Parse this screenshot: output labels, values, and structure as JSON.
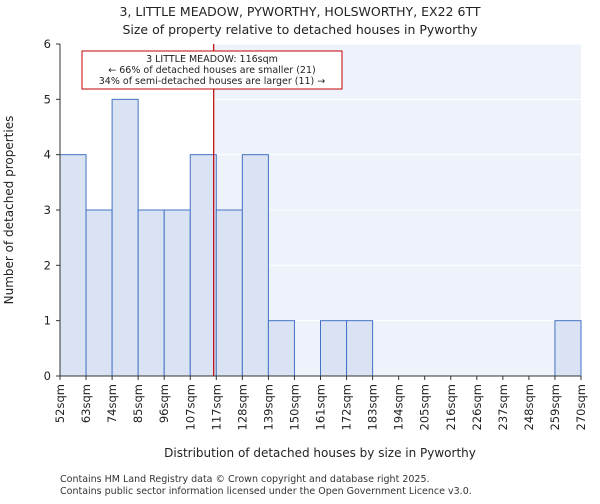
{
  "chart_data": {
    "type": "bar",
    "title_line1": "3, LITTLE MEADOW, PYWORTHY, HOLSWORTHY, EX22 6TT",
    "title_line2": "Size of property relative to detached houses in Pyworthy",
    "xlabel": "Distribution of detached houses by size in Pyworthy",
    "ylabel": "Number of detached properties",
    "bin_edges": [
      52,
      63,
      74,
      85,
      96,
      107,
      117,
      128,
      139,
      150,
      161,
      172,
      183,
      194,
      205,
      216,
      226,
      237,
      248,
      259,
      270
    ],
    "tick_labels": [
      "52sqm",
      "63sqm",
      "74sqm",
      "85sqm",
      "96sqm",
      "107sqm",
      "117sqm",
      "128sqm",
      "139sqm",
      "150sqm",
      "161sqm",
      "172sqm",
      "183sqm",
      "194sqm",
      "205sqm",
      "216sqm",
      "226sqm",
      "237sqm",
      "248sqm",
      "259sqm",
      "270sqm"
    ],
    "values": [
      4,
      3,
      5,
      3,
      3,
      4,
      3,
      4,
      1,
      0,
      1,
      1,
      0,
      0,
      0,
      0,
      0,
      0,
      0,
      1
    ],
    "ylim": [
      0,
      6
    ],
    "yticks": [
      0,
      1,
      2,
      3,
      4,
      5,
      6
    ],
    "property_size": 116,
    "annotation": {
      "line1": "3 LITTLE MEADOW: 116sqm",
      "line2": "← 66% of detached houses are smaller (21)",
      "line3": "34% of semi-detached houses are larger (11) →"
    },
    "colors": {
      "bar_fill": "#dae3f3",
      "bar_edge": "#4472c4",
      "marker_line": "#c00000",
      "shade": "#eef2fb",
      "annotation_border": "#c00000"
    }
  },
  "footer": {
    "line1": "Contains HM Land Registry data © Crown copyright and database right 2025.",
    "line2": "Contains public sector information licensed under the Open Government Licence v3.0."
  }
}
